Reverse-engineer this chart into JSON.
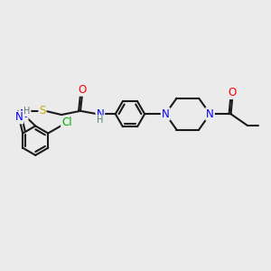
{
  "background_color": "#EBEBEB",
  "atom_colors": {
    "C": "#000000",
    "N": "#0000FF",
    "O": "#FF0000",
    "S": "#CCAA00",
    "Cl": "#00AA00",
    "H": "#5A7A7A"
  },
  "bond_color": "#1A1A1A",
  "bond_width": 1.5,
  "font_size": 8.5,
  "scale": 1.0
}
